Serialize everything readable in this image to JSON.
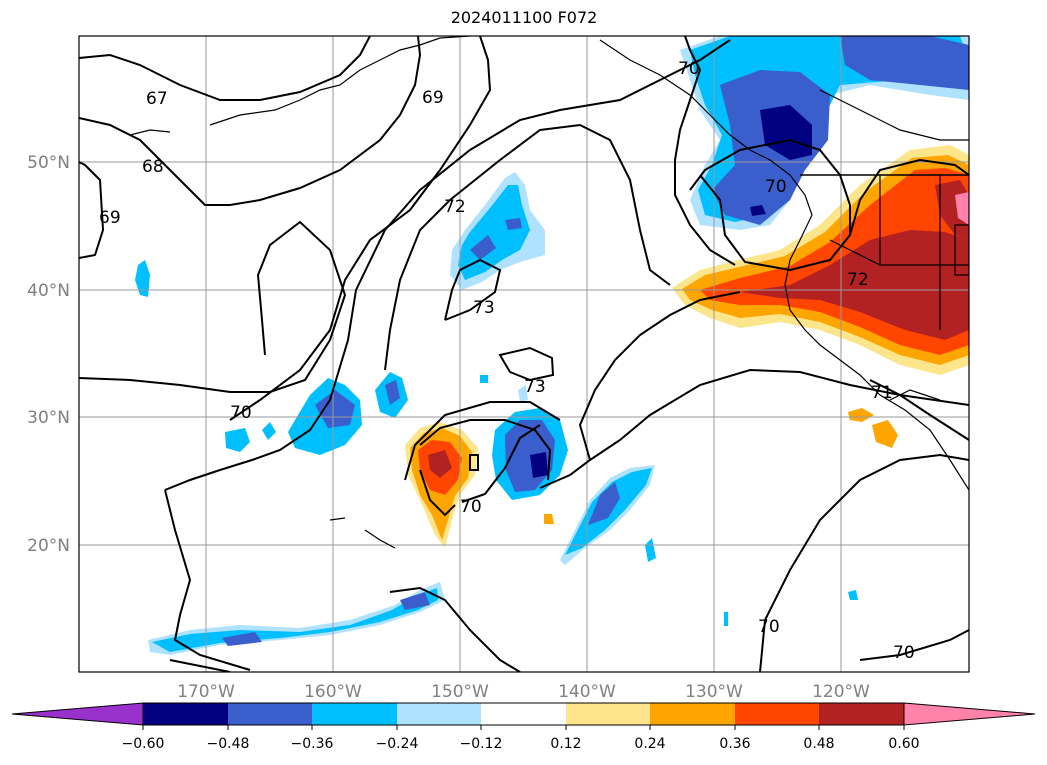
{
  "title": "2024011100 F072",
  "map": {
    "lat_labels": [
      "50°N",
      "40°N",
      "30°N",
      "20°N"
    ],
    "lon_labels": [
      "170°W",
      "160°W",
      "150°W",
      "140°W",
      "130°W",
      "120°W"
    ],
    "contour_labels": [
      "67",
      "68",
      "69",
      "69",
      "70",
      "72",
      "73",
      "73",
      "70",
      "70",
      "70",
      "70",
      "72",
      "71",
      "70",
      "70"
    ]
  },
  "colorbar": {
    "ticks": [
      "−0.60",
      "−0.48",
      "−0.36",
      "−0.24",
      "−0.12",
      "0.12",
      "0.24",
      "0.36",
      "0.48",
      "0.60"
    ],
    "colors": [
      "#9932cc",
      "#000080",
      "#3a5fcd",
      "#00bfff",
      "#aee2ff",
      "#ffffff",
      "#fce58a",
      "#ffa500",
      "#ff4500",
      "#b22222",
      "#ff82ab"
    ]
  }
}
